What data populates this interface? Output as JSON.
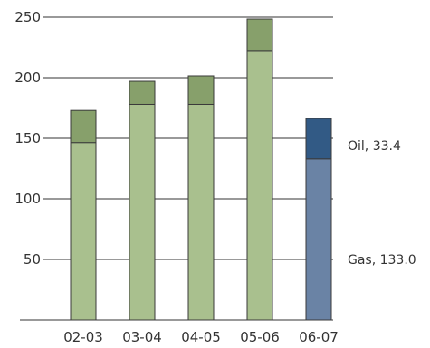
{
  "chart_data": {
    "type": "bar",
    "stacked": true,
    "categories": [
      "02-03",
      "03-04",
      "04-05",
      "05-06",
      "06-07"
    ],
    "series": [
      {
        "values": [
          146.5,
          178.0,
          178.0,
          222.5,
          133.0
        ],
        "colors": [
          "#a9c08e",
          "#a9c08e",
          "#a9c08e",
          "#a9c08e",
          "#6a83a5"
        ]
      },
      {
        "values": [
          26.5,
          19.0,
          23.5,
          26.0,
          33.4
        ],
        "colors": [
          "#87a06b",
          "#87a06b",
          "#87a06b",
          "#87a06b",
          "#325a85"
        ]
      }
    ],
    "ylim": [
      0,
      250
    ],
    "yticks": [
      50,
      100,
      150,
      200,
      250
    ],
    "ytick_labels": [
      "50",
      "100",
      "150",
      "200",
      "250"
    ],
    "grid": true,
    "annotations": [
      {
        "text": "Oil, 33.4",
        "category": "06-07",
        "y": 144
      },
      {
        "text": "Gas, 133.0",
        "category": "06-07",
        "y": 50
      }
    ]
  }
}
